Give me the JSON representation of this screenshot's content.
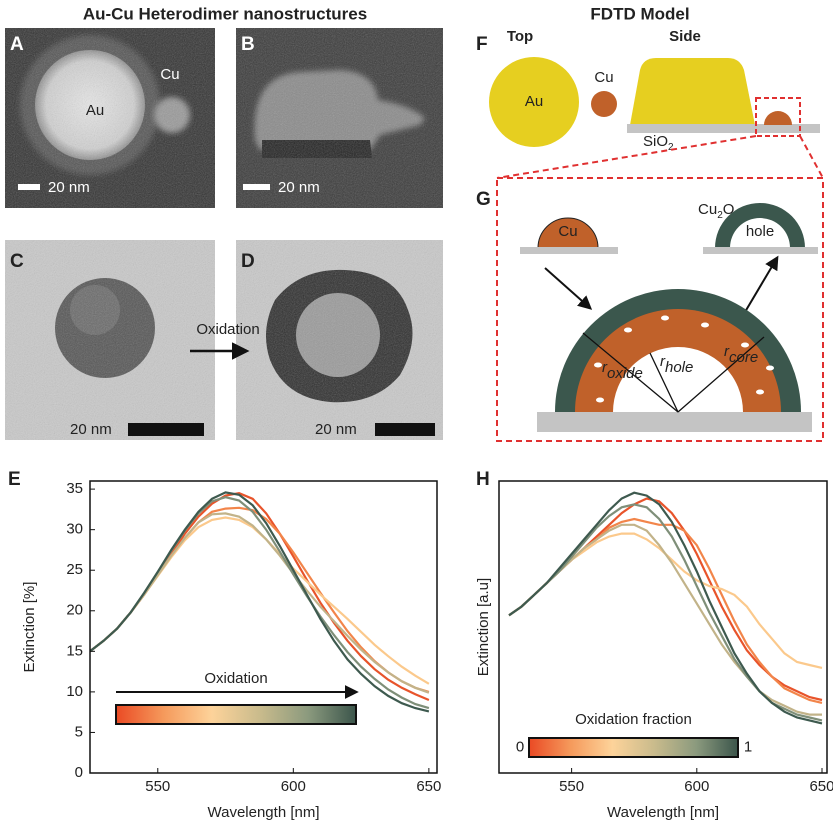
{
  "titles": [
    "Au-Cu Heterodimer nanostructures",
    "FDTD Model"
  ],
  "panels": {
    "A": {
      "letter": "A",
      "labels": [
        "Au",
        "Cu"
      ],
      "scale_bar": "20 nm"
    },
    "B": {
      "letter": "B",
      "scale_bar": "20 nm"
    },
    "C": {
      "letter": "C",
      "scale_bar": "20 nm"
    },
    "D": {
      "letter": "D",
      "scale_bar": "20 nm"
    },
    "arrow_label": "Oxidation",
    "F": {
      "letter": "F",
      "views": [
        "Top",
        "Side"
      ],
      "labels": [
        "Au",
        "Cu"
      ],
      "substrate": {
        "text": "SiO",
        "sub": "2"
      }
    },
    "G": {
      "letter": "G",
      "cu": "Cu",
      "oxide": {
        "text": "Cu",
        "sub": "2",
        "after": "O"
      },
      "hole": "hole",
      "radii": [
        {
          "r": "r",
          "sub": "oxide"
        },
        {
          "r": "r",
          "sub": "hole"
        },
        {
          "r": "r",
          "sub": "core"
        }
      ]
    }
  },
  "chart_data": [
    {
      "type": "line",
      "panel_label": "E",
      "xlabel": "Wavelength [nm]",
      "ylabel": "Extinction [%]",
      "x": [
        525,
        530,
        535,
        540,
        545,
        550,
        555,
        560,
        565,
        570,
        575,
        580,
        585,
        590,
        595,
        600,
        605,
        610,
        615,
        620,
        625,
        630,
        635,
        640,
        645,
        650
      ],
      "xlim": [
        525,
        653
      ],
      "xticks": [
        550,
        600,
        650
      ],
      "ylim": [
        0,
        36
      ],
      "yticks": [
        0,
        5,
        10,
        15,
        20,
        25,
        30,
        35
      ],
      "series": [
        {
          "color": "#e8542b",
          "values": [
            15,
            16.3,
            17.8,
            19.8,
            22,
            24.5,
            27,
            29.5,
            31.6,
            33.2,
            34.2,
            34.5,
            33.8,
            32,
            29.5,
            26.7,
            23.8,
            21,
            18.5,
            16.3,
            14.4,
            12.8,
            11.5,
            10.5,
            9.7,
            9
          ]
        },
        {
          "color": "#f2854a",
          "values": [
            15,
            16.3,
            17.8,
            19.8,
            22,
            24.4,
            26.8,
            29,
            30.9,
            32.2,
            32.6,
            32.7,
            32.4,
            31.3,
            29.5,
            27.2,
            24.7,
            22.2,
            19.8,
            17.5,
            15.5,
            13.8,
            12.4,
            11.3,
            10.5,
            10
          ]
        },
        {
          "color": "#fbc98c",
          "values": [
            15,
            16.3,
            17.8,
            19.8,
            22,
            24.3,
            26.6,
            28.7,
            30.3,
            31.2,
            31.5,
            31.2,
            30.3,
            28.8,
            27,
            25.2,
            23.6,
            22,
            20.5,
            19,
            17.4,
            15.8,
            14.4,
            13.1,
            12,
            11
          ]
        },
        {
          "color": "#c2b389",
          "values": [
            15,
            16.3,
            17.8,
            19.8,
            22,
            24.4,
            26.8,
            29,
            30.9,
            31.9,
            32,
            31.6,
            30.5,
            28.8,
            26.8,
            24.6,
            22.5,
            20.5,
            18.7,
            16.9,
            15.2,
            13.7,
            12.4,
            11.3,
            10.5,
            9.9
          ]
        },
        {
          "color": "#7f8f79",
          "values": [
            15,
            16.3,
            17.8,
            19.8,
            22.2,
            24.8,
            27.4,
            29.9,
            32,
            33.5,
            34,
            33.6,
            32.2,
            30,
            27.3,
            24.5,
            21.8,
            19.3,
            17,
            14.9,
            13.1,
            11.6,
            10.3,
            9.3,
            8.5,
            8
          ]
        },
        {
          "color": "#3e5a4f",
          "values": [
            15,
            16.3,
            17.8,
            19.8,
            22.2,
            24.8,
            27.5,
            30,
            32.2,
            33.8,
            34.6,
            34.3,
            33,
            30.8,
            28,
            25,
            22,
            19,
            16.3,
            14,
            12.2,
            10.7,
            9.5,
            8.6,
            8,
            7.6
          ]
        }
      ],
      "colorbar": {
        "label": "Oxidation",
        "colors": [
          "#ea4a24",
          "#f59a5c",
          "#fdd39a",
          "#c9bb8c",
          "#8b9a7e",
          "#3b554b"
        ]
      }
    },
    {
      "type": "line",
      "panel_label": "H",
      "xlabel": "Wavelength [nm]",
      "ylabel": "Extinction [a.u]",
      "x": [
        525,
        530,
        535,
        540,
        545,
        550,
        555,
        560,
        565,
        570,
        575,
        580,
        585,
        590,
        595,
        600,
        605,
        610,
        615,
        620,
        625,
        630,
        635,
        640,
        645,
        650
      ],
      "xlim": [
        521,
        652
      ],
      "xticks": [
        550,
        600,
        650
      ],
      "ylim": [
        0,
        1
      ],
      "series": [
        {
          "color": "#e8542b",
          "values": [
            0.54,
            0.57,
            0.61,
            0.65,
            0.69,
            0.73,
            0.77,
            0.81,
            0.85,
            0.89,
            0.92,
            0.94,
            0.93,
            0.89,
            0.83,
            0.75,
            0.66,
            0.57,
            0.49,
            0.42,
            0.37,
            0.33,
            0.3,
            0.28,
            0.26,
            0.25
          ]
        },
        {
          "color": "#f2854a",
          "values": [
            0.54,
            0.57,
            0.61,
            0.65,
            0.69,
            0.73,
            0.77,
            0.8,
            0.84,
            0.86,
            0.87,
            0.86,
            0.85,
            0.85,
            0.83,
            0.78,
            0.7,
            0.61,
            0.52,
            0.44,
            0.38,
            0.33,
            0.29,
            0.27,
            0.25,
            0.24
          ]
        },
        {
          "color": "#fbc98c",
          "values": [
            0.54,
            0.57,
            0.61,
            0.65,
            0.69,
            0.73,
            0.76,
            0.79,
            0.81,
            0.82,
            0.82,
            0.8,
            0.77,
            0.73,
            0.69,
            0.66,
            0.64,
            0.63,
            0.61,
            0.57,
            0.51,
            0.46,
            0.41,
            0.38,
            0.37,
            0.36
          ]
        },
        {
          "color": "#c2b389",
          "values": [
            0.54,
            0.57,
            0.61,
            0.65,
            0.69,
            0.73,
            0.77,
            0.8,
            0.83,
            0.85,
            0.85,
            0.83,
            0.78,
            0.72,
            0.65,
            0.58,
            0.51,
            0.44,
            0.38,
            0.33,
            0.28,
            0.25,
            0.23,
            0.21,
            0.2,
            0.2
          ]
        },
        {
          "color": "#7f8f79",
          "values": [
            0.54,
            0.57,
            0.61,
            0.65,
            0.69,
            0.74,
            0.79,
            0.84,
            0.88,
            0.91,
            0.92,
            0.91,
            0.87,
            0.81,
            0.73,
            0.64,
            0.55,
            0.47,
            0.39,
            0.33,
            0.28,
            0.24,
            0.22,
            0.2,
            0.19,
            0.18
          ]
        },
        {
          "color": "#3e5a4f",
          "values": [
            0.54,
            0.57,
            0.61,
            0.65,
            0.7,
            0.75,
            0.8,
            0.85,
            0.9,
            0.94,
            0.96,
            0.95,
            0.92,
            0.86,
            0.78,
            0.69,
            0.59,
            0.5,
            0.41,
            0.34,
            0.28,
            0.24,
            0.21,
            0.19,
            0.18,
            0.17
          ]
        }
      ],
      "colorbar": {
        "label": "Oxidation fraction",
        "ticks": [
          0,
          1
        ],
        "colors": [
          "#ea4a24",
          "#f59a5c",
          "#fdd39a",
          "#c9bb8c",
          "#8b9a7e",
          "#3b554b"
        ]
      }
    }
  ]
}
